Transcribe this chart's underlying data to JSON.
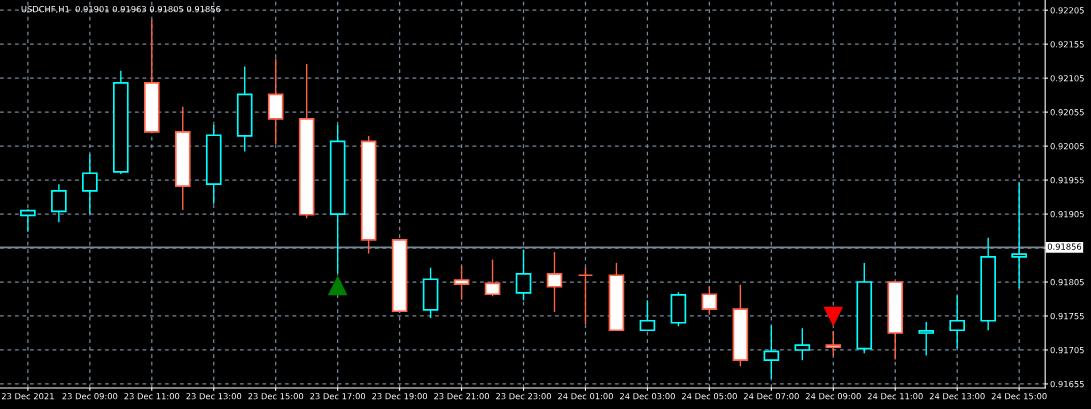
{
  "chart_data": {
    "type": "candlestick",
    "title": "USDCHF,H1  0.91901 0.91963 0.91805 0.91856",
    "categories": [
      "23 Dec 2021",
      null,
      "23 Dec 09:00",
      null,
      "23 Dec 11:00",
      null,
      "23 Dec 13:00",
      null,
      "23 Dec 15:00",
      null,
      "23 Dec 17:00",
      null,
      "23 Dec 19:00",
      null,
      "23 Dec 21:00",
      null,
      "23 Dec 23:00",
      null,
      "24 Dec 01:00",
      null,
      "24 Dec 03:00",
      null,
      "24 Dec 05:00",
      null,
      "24 Dec 07:00",
      null,
      "24 Dec 09:00",
      null,
      "24 Dec 11:00",
      null,
      "24 Dec 13:00",
      null,
      "24 Dec 15:00"
    ],
    "ohlc": [
      [
        0.91903,
        0.91912,
        0.91879,
        0.9191
      ],
      [
        0.91909,
        0.91949,
        0.91893,
        0.91939
      ],
      [
        0.91939,
        0.91993,
        0.91905,
        0.91965
      ],
      [
        0.91967,
        0.92116,
        0.91964,
        0.92098
      ],
      [
        0.92098,
        0.92191,
        0.92024,
        0.92026
      ],
      [
        0.92026,
        0.92063,
        0.91911,
        0.91946
      ],
      [
        0.91949,
        0.92036,
        0.9192,
        0.92021
      ],
      [
        0.9202,
        0.92122,
        0.91997,
        0.92081
      ],
      [
        0.92081,
        0.92134,
        0.92008,
        0.92045
      ],
      [
        0.92045,
        0.92126,
        0.91899,
        0.91904
      ],
      [
        0.91905,
        0.92036,
        0.91818,
        0.92012
      ],
      [
        0.92012,
        0.9202,
        0.91847,
        0.91867
      ],
      [
        0.91867,
        0.91867,
        0.9176,
        0.91762
      ],
      [
        0.91764,
        0.91826,
        0.91752,
        0.91809
      ],
      [
        0.91808,
        0.91829,
        0.91779,
        0.91802
      ],
      [
        0.91803,
        0.91838,
        0.91784,
        0.91787
      ],
      [
        0.91789,
        0.91852,
        0.91778,
        0.91817
      ],
      [
        0.91817,
        0.91849,
        0.91761,
        0.91798
      ],
      [
        0.91815,
        0.91826,
        0.91743,
        0.91815
      ],
      [
        0.91815,
        0.91833,
        0.91734,
        0.91734
      ],
      [
        0.91734,
        0.91778,
        0.91734,
        0.91748
      ],
      [
        0.91745,
        0.9179,
        0.9174,
        0.91786
      ],
      [
        0.91787,
        0.91799,
        0.91757,
        0.91765
      ],
      [
        0.91765,
        0.91801,
        0.91681,
        0.9169
      ],
      [
        0.9169,
        0.91741,
        0.91663,
        0.91703
      ],
      [
        0.91705,
        0.91737,
        0.9169,
        0.91712
      ],
      [
        0.91712,
        0.91733,
        0.91697,
        0.91709
      ],
      [
        0.91707,
        0.91833,
        0.917,
        0.91805
      ],
      [
        0.91805,
        0.91805,
        0.91691,
        0.9173
      ],
      [
        0.9173,
        0.91746,
        0.91697,
        0.91733
      ],
      [
        0.91734,
        0.91785,
        0.91707,
        0.91748
      ],
      [
        0.91748,
        0.9187,
        0.91734,
        0.91842
      ],
      [
        0.91842,
        0.91951,
        0.91796,
        0.91846
      ]
    ],
    "colors": [
      "#00ffff",
      "#00ffff",
      "#00ffff",
      "#00ffff",
      "#ff6347",
      "#ff6347",
      "#00ffff",
      "#00ffff",
      "#ff6347",
      "#ff6347",
      "#00ffff",
      "#ff6347",
      "#ff6347",
      "#00ffff",
      "#ff6347",
      "#ff6347",
      "#00ffff",
      "#ff6347",
      "#ff6347",
      "#ff6347",
      "#00ffff",
      "#00ffff",
      "#ff6347",
      "#ff6347",
      "#00ffff",
      "#00ffff",
      "#ff6347",
      "#00ffff",
      "#ff6347",
      "#00ffff",
      "#00ffff",
      "#00ffff",
      "#00ffff"
    ],
    "series": [
      {
        "type": "scatter",
        "color": "#008000",
        "marker": "triangle",
        "values": [
          null,
          null,
          null,
          null,
          null,
          null,
          null,
          null,
          null,
          null,
          0.918,
          null,
          null,
          null,
          null,
          null,
          null,
          null,
          null,
          null,
          null,
          null,
          null,
          null,
          null,
          null,
          null,
          null,
          null,
          null,
          null,
          null,
          null
        ]
      },
      {
        "type": "scatter",
        "color": "#ff0000",
        "marker": "triangle_down",
        "values": [
          null,
          null,
          null,
          null,
          null,
          null,
          null,
          null,
          null,
          null,
          null,
          null,
          null,
          null,
          null,
          null,
          null,
          null,
          null,
          null,
          null,
          null,
          null,
          null,
          null,
          null,
          0.91754,
          null,
          null,
          null,
          null,
          null,
          null
        ]
      }
    ],
    "ylim": [
      0.91649,
      0.9222
    ],
    "yticks": [
      0.91655,
      0.91705,
      0.91755,
      0.91805,
      {
        "value": 0.91855,
        "label": null
      },
      0.91905,
      0.91955,
      0.92005,
      0.92055,
      0.92105,
      0.92155,
      0.92205
    ],
    "ref_lines": [
      {
        "axis": "y",
        "value": 0.91856,
        "label": "0.91856",
        "color": "#778899"
      }
    ],
    "grid": true
  }
}
